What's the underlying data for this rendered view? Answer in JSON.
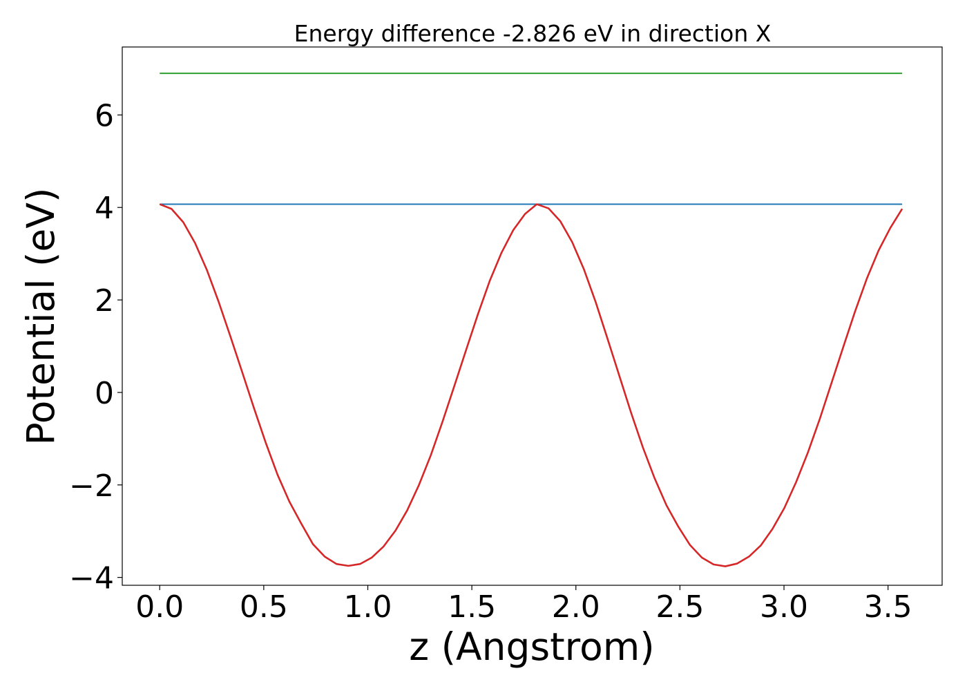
{
  "chart_data": {
    "type": "line",
    "title": "Energy difference -2.826 eV in direction X",
    "xlabel": "z (Angstrom)",
    "ylabel": "Potential (eV)",
    "xlim": [
      -0.18,
      3.76
    ],
    "ylim": [
      -4.17,
      7.47
    ],
    "xticks": [
      0.0,
      0.5,
      1.0,
      1.5,
      2.0,
      2.5,
      3.0,
      3.5
    ],
    "xtick_labels": [
      "0.0",
      "0.5",
      "1.0",
      "1.5",
      "2.0",
      "2.5",
      "3.0",
      "3.5"
    ],
    "yticks": [
      -4,
      -2,
      0,
      2,
      4,
      6
    ],
    "ytick_labels": [
      "−4",
      "−2",
      "0",
      "2",
      "4",
      "6"
    ],
    "grid": false,
    "series": [
      {
        "color": "#d62728",
        "x": [
          0.0,
          0.0566,
          0.1133,
          0.1699,
          0.2265,
          0.2832,
          0.3398,
          0.3964,
          0.4531,
          0.5097,
          0.5663,
          0.623,
          0.6796,
          0.7362,
          0.7929,
          0.8495,
          0.9061,
          0.9628,
          1.0194,
          1.076,
          1.1327,
          1.1893,
          1.2459,
          1.3026,
          1.3592,
          1.4158,
          1.4725,
          1.5291,
          1.5857,
          1.6424,
          1.699,
          1.7556,
          1.8123,
          1.8689,
          1.9255,
          1.9822,
          2.0388,
          2.0954,
          2.1521,
          2.2087,
          2.2653,
          2.322,
          2.3786,
          2.4352,
          2.4919,
          2.5485,
          2.6051,
          2.6618,
          2.7184,
          2.775,
          2.8317,
          2.8883,
          2.9449,
          3.0016,
          3.0582,
          3.1148,
          3.1715,
          3.2281,
          3.2847,
          3.3414,
          3.398,
          3.4546,
          3.5113,
          3.5679
        ],
        "y": [
          4.07,
          3.97,
          3.68,
          3.23,
          2.65,
          1.96,
          1.21,
          0.44,
          -0.34,
          -1.09,
          -1.78,
          -2.36,
          -2.83,
          -3.28,
          -3.55,
          -3.71,
          -3.75,
          -3.71,
          -3.57,
          -3.33,
          -2.99,
          -2.55,
          -2.0,
          -1.36,
          -0.63,
          0.14,
          0.92,
          1.69,
          2.41,
          3.02,
          3.51,
          3.86,
          4.07,
          3.98,
          3.7,
          3.25,
          2.66,
          1.95,
          1.16,
          0.36,
          -0.44,
          -1.19,
          -1.86,
          -2.44,
          -2.9,
          -3.3,
          -3.57,
          -3.72,
          -3.76,
          -3.7,
          -3.55,
          -3.31,
          -2.95,
          -2.5,
          -1.94,
          -1.3,
          -0.58,
          0.2,
          0.98,
          1.75,
          2.46,
          3.07,
          3.56,
          3.97
        ]
      },
      {
        "color": "#1f77b4",
        "x": [
          0.0,
          3.5679
        ],
        "y": [
          4.07,
          4.07
        ]
      },
      {
        "color": "#2ca02c",
        "x": [
          0.0,
          3.5679
        ],
        "y": [
          6.9,
          6.9
        ]
      }
    ]
  }
}
